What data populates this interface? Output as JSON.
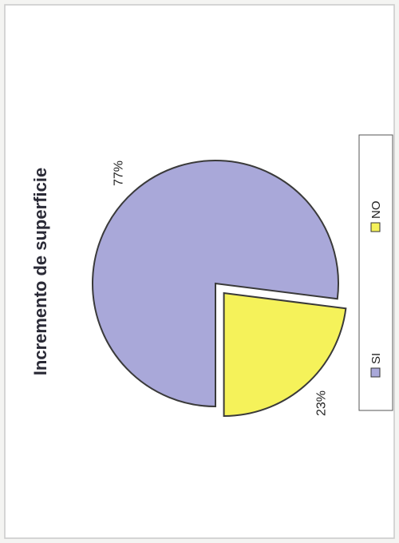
{
  "chart_data": {
    "type": "pie",
    "title": "Incremento de superficie",
    "categories": [
      "SI",
      "NO"
    ],
    "values": [
      77,
      23
    ],
    "labels": [
      "77%",
      "23%"
    ],
    "colors": [
      "#a9a8d9",
      "#f5f25a"
    ],
    "exploded": "NO",
    "legend_position": "bottom"
  }
}
